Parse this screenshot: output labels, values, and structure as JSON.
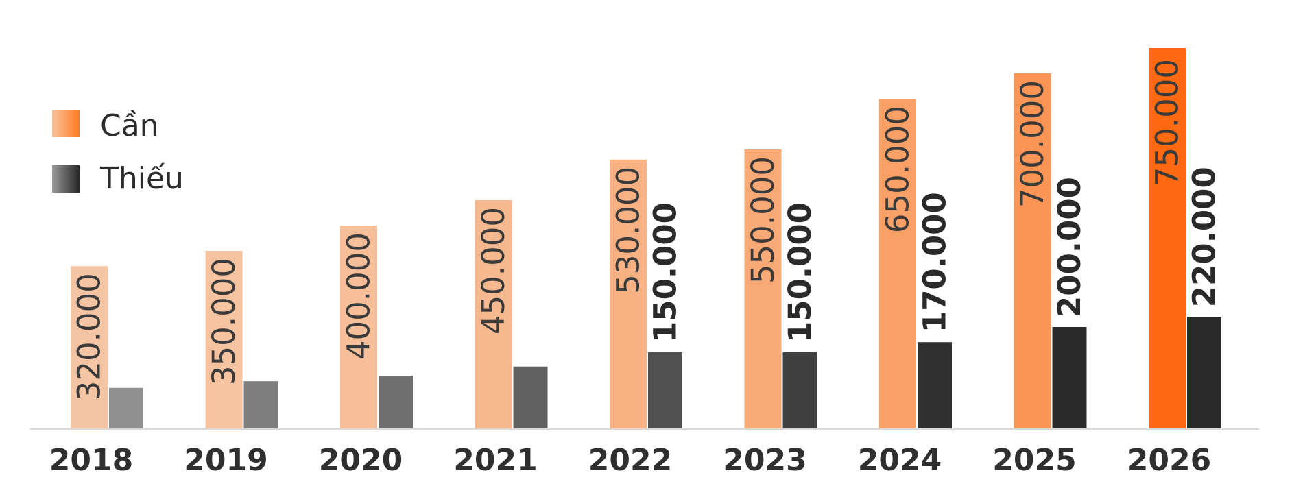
{
  "chart_data": {
    "type": "bar",
    "categories": [
      "2018",
      "2019",
      "2020",
      "2021",
      "2022",
      "2023",
      "2024",
      "2025",
      "2026"
    ],
    "series": [
      {
        "name": "Cần",
        "values": [
          320000,
          350000,
          400000,
          450000,
          530000,
          550000,
          650000,
          700000,
          750000
        ],
        "value_labels": [
          "320.000",
          "350.000",
          "400.000",
          "450.000",
          "530.000",
          "550.000",
          "650.000",
          "700.000",
          "750.000"
        ]
      },
      {
        "name": "Thiếu",
        "values": [
          80000,
          93000,
          104000,
          122000,
          150000,
          150000,
          170000,
          200000,
          220000
        ],
        "value_labels": [
          "",
          "",
          "",
          "",
          "150.000",
          "150.000",
          "170.000",
          "200.000",
          "220.000"
        ]
      }
    ],
    "title": "",
    "xlabel": "",
    "ylabel": "",
    "ylim": [
      0,
      780000
    ],
    "grid": false,
    "legend": "top-left",
    "colors": {
      "need_light": "#f5c5a3",
      "need_dark": "#ff6a10",
      "short_light": "#8f8f8f",
      "short_dark": "#2a2a2a",
      "axis": "#d9d9d9"
    }
  }
}
